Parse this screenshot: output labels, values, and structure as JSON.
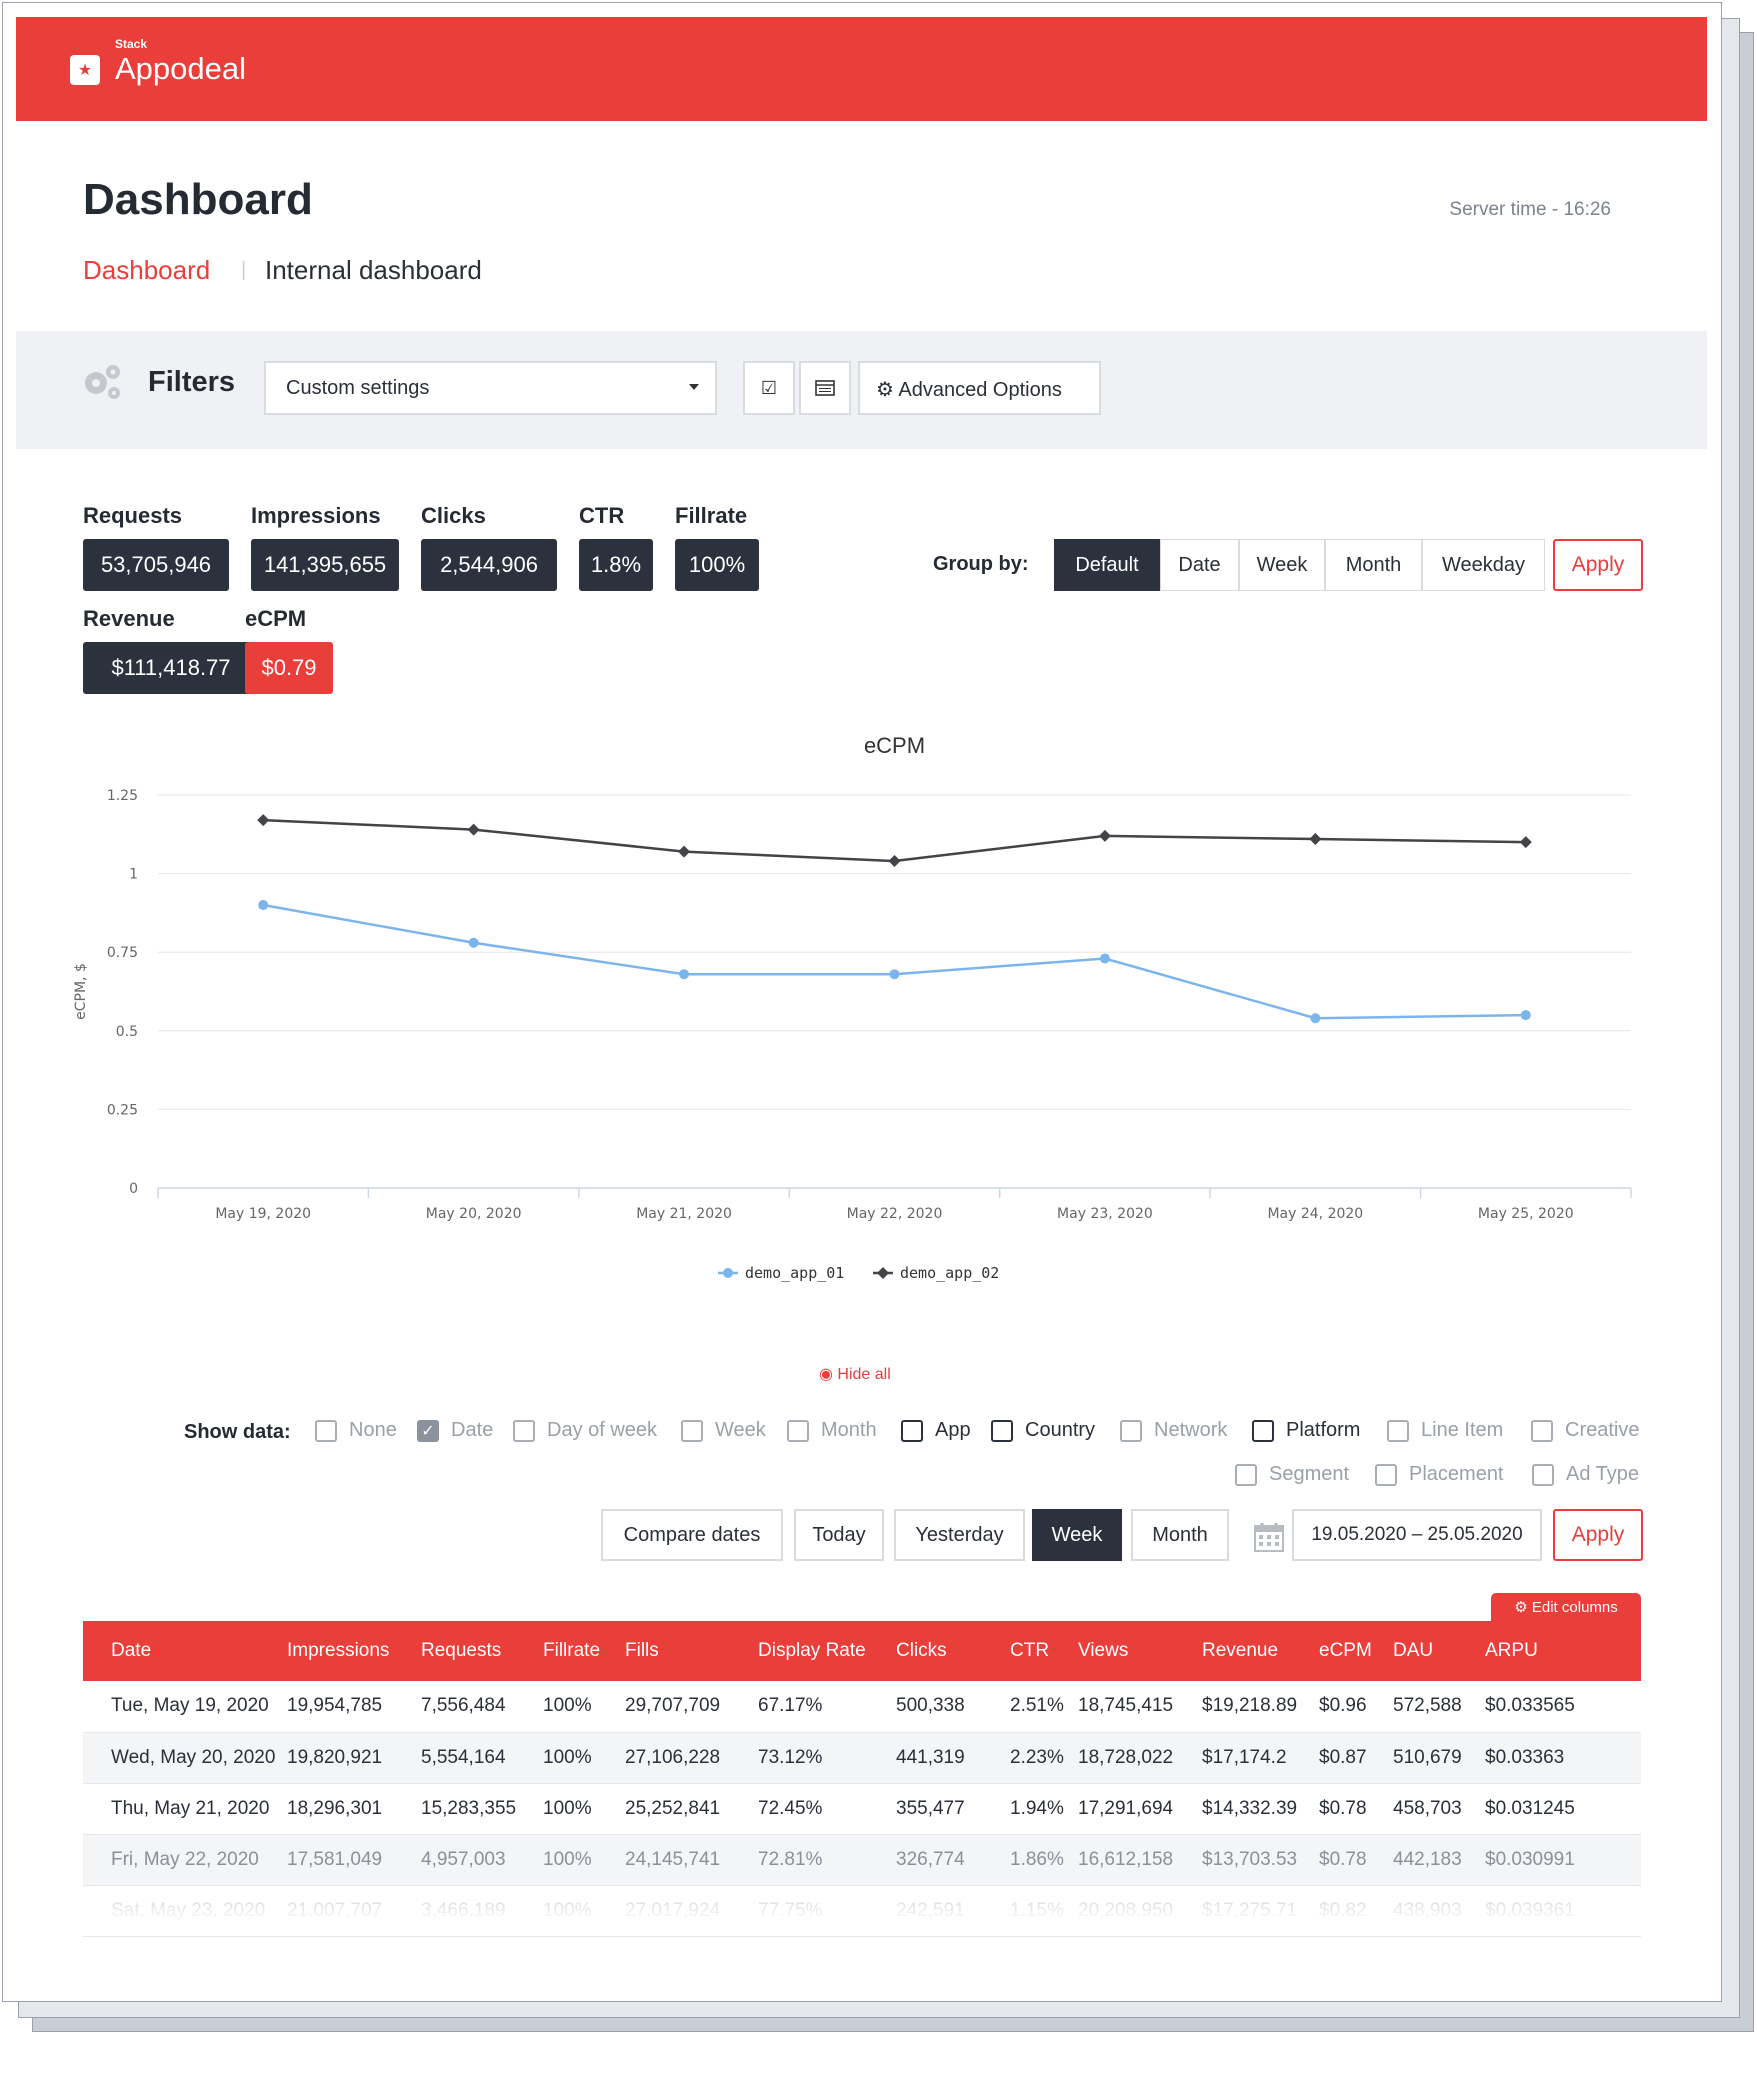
{
  "brand": {
    "small": "Stack",
    "name": "Appodeal",
    "color": "#e93e3a"
  },
  "header": {
    "title": "Dashboard",
    "server_time": "Server time - 16:26"
  },
  "breadcrumb": {
    "active": "Dashboard",
    "other": "Internal dashboard"
  },
  "filters": {
    "label": "Filters",
    "select_value": "Custom settings",
    "advanced_label": "Advanced Options"
  },
  "stats": {
    "requests": {
      "label": "Requests",
      "value": "53,705,946"
    },
    "impressions": {
      "label": "Impressions",
      "value": "141,395,655"
    },
    "clicks": {
      "label": "Clicks",
      "value": "2,544,906"
    },
    "ctr": {
      "label": "CTR",
      "value": "1.8%"
    },
    "fillrate": {
      "label": "Fillrate",
      "value": "100%"
    },
    "revenue": {
      "label": "Revenue",
      "value": "$111,418.77"
    },
    "ecpm": {
      "label": "eCPM",
      "value": "$0.79"
    }
  },
  "group_by": {
    "label": "Group by:",
    "options": [
      "Default",
      "Date",
      "Week",
      "Month",
      "Weekday"
    ],
    "selected": "Default",
    "apply": "Apply"
  },
  "chart_data": {
    "type": "line",
    "title": "eCPM",
    "ylabel": "eCPM, $",
    "xlabel": "",
    "ylim": [
      0,
      1.25
    ],
    "yticks": [
      "0",
      "0.25",
      "0.5",
      "0.75",
      "1",
      "1.25"
    ],
    "categories": [
      "May 19, 2020",
      "May 20, 2020",
      "May 21, 2020",
      "May 22, 2020",
      "May 23, 2020",
      "May 24, 2020",
      "May 25, 2020"
    ],
    "series": [
      {
        "name": "demo_app_01",
        "color": "#7cb5ec",
        "values": [
          0.9,
          0.78,
          0.68,
          0.68,
          0.73,
          0.54,
          0.55
        ]
      },
      {
        "name": "demo_app_02",
        "color": "#434348",
        "values": [
          1.17,
          1.14,
          1.07,
          1.04,
          1.12,
          1.11,
          1.1
        ]
      }
    ],
    "grid": true,
    "legend": "bottom-center"
  },
  "hide_all": "Hide all",
  "show_data": {
    "label": "Show data:",
    "options": [
      {
        "label": "None",
        "checked": false,
        "enabled": false
      },
      {
        "label": "Date",
        "checked": true,
        "enabled": false
      },
      {
        "label": "Day of week",
        "checked": false,
        "enabled": false
      },
      {
        "label": "Week",
        "checked": false,
        "enabled": false
      },
      {
        "label": "Month",
        "checked": false,
        "enabled": false
      },
      {
        "label": "App",
        "checked": false,
        "enabled": true
      },
      {
        "label": "Country",
        "checked": false,
        "enabled": true
      },
      {
        "label": "Network",
        "checked": false,
        "enabled": false
      },
      {
        "label": "Platform",
        "checked": false,
        "enabled": true
      },
      {
        "label": "Line Item",
        "checked": false,
        "enabled": false
      },
      {
        "label": "Creative",
        "checked": false,
        "enabled": false
      },
      {
        "label": "Segment",
        "checked": false,
        "enabled": false
      },
      {
        "label": "Placement",
        "checked": false,
        "enabled": false
      },
      {
        "label": "Ad Type",
        "checked": false,
        "enabled": false
      }
    ]
  },
  "date_controls": {
    "compare": "Compare dates",
    "today": "Today",
    "yesterday": "Yesterday",
    "week": "Week",
    "month": "Month",
    "selected": "Week",
    "range": "19.05.2020 – 25.05.2020",
    "apply": "Apply"
  },
  "table": {
    "edit_columns": "Edit columns",
    "columns": [
      "Date",
      "Impressions",
      "Requests",
      "Fillrate",
      "Fills",
      "Display Rate",
      "Clicks",
      "CTR",
      "Views",
      "Revenue",
      "eCPM",
      "DAU",
      "ARPU"
    ],
    "rows": [
      [
        "Tue, May 19, 2020",
        "19,954,785",
        "7,556,484",
        "100%",
        "29,707,709",
        "67.17%",
        "500,338",
        "2.51%",
        "18,745,415",
        "$19,218.89",
        "$0.96",
        "572,588",
        "$0.033565"
      ],
      [
        "Wed, May 20, 2020",
        "19,820,921",
        "5,554,164",
        "100%",
        "27,106,228",
        "73.12%",
        "441,319",
        "2.23%",
        "18,728,022",
        "$17,174.2",
        "$0.87",
        "510,679",
        "$0.03363"
      ],
      [
        "Thu, May 21, 2020",
        "18,296,301",
        "15,283,355",
        "100%",
        "25,252,841",
        "72.45%",
        "355,477",
        "1.94%",
        "17,291,694",
        "$14,332.39",
        "$0.78",
        "458,703",
        "$0.031245"
      ],
      [
        "Fri, May 22, 2020",
        "17,581,049",
        "4,957,003",
        "100%",
        "24,145,741",
        "72.81%",
        "326,774",
        "1.86%",
        "16,612,158",
        "$13,703.53",
        "$0.78",
        "442,183",
        "$0.030991"
      ],
      [
        "Sat, May 23, 2020",
        "21,007,707",
        "3,466,189",
        "100%",
        "27,017,924",
        "77.75%",
        "242,591",
        "1.15%",
        "20,208,950",
        "$17,275.71",
        "$0.82",
        "438,903",
        "$0.039361"
      ]
    ]
  }
}
